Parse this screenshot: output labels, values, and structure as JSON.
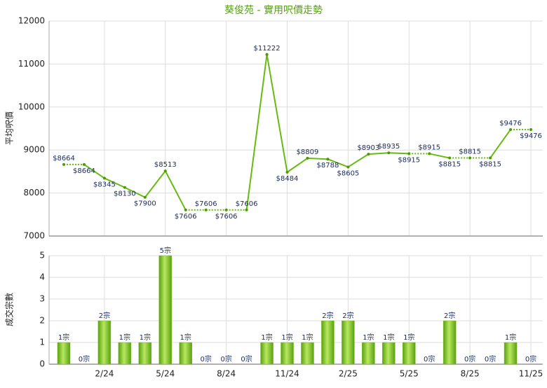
{
  "chart_data": [
    {
      "type": "line",
      "title": "葵俊苑 - 實用呎價走勢",
      "y_label": "平均呎價",
      "categories": [
        null,
        null,
        "2/24",
        null,
        null,
        "5/24",
        null,
        null,
        "8/24",
        null,
        null,
        "11/24",
        null,
        null,
        "2/25",
        null,
        null,
        "5/25",
        null,
        null,
        "8/25",
        null,
        null,
        "11/25"
      ],
      "series": [
        {
          "name": "平均呎價",
          "color": "#66bb11",
          "values": [
            8664,
            8664,
            8345,
            8130,
            7900,
            8513,
            7606,
            7606,
            7606,
            7606,
            11222,
            8484,
            8809,
            8788,
            8605,
            8903,
            8935,
            8915,
            8915,
            8815,
            8815,
            8815,
            9476,
            9476
          ],
          "value_labels": [
            "$8664",
            "$8664",
            "$8345",
            "$8130",
            "$7900",
            "$8513",
            "$7606",
            "$7606",
            "$7606",
            "$7606",
            "$11222",
            "$8484",
            "$8809",
            "$8788",
            "$8605",
            "$8903",
            "$8935",
            "$8915",
            "$8915",
            "$8815",
            "$8815",
            "$8815",
            "$9476",
            "$9476"
          ]
        }
      ],
      "ylim": [
        7000,
        12000
      ],
      "yticks": [
        7000,
        8000,
        9000,
        10000,
        11000,
        12000
      ],
      "grid": true
    },
    {
      "type": "bar",
      "y_label": "成交宗數",
      "categories": [
        null,
        null,
        "2/24",
        null,
        null,
        "5/24",
        null,
        null,
        "8/24",
        null,
        null,
        "11/24",
        null,
        null,
        "2/25",
        null,
        null,
        "5/25",
        null,
        null,
        "8/25",
        null,
        null,
        "11/25"
      ],
      "series": [
        {
          "name": "成交宗數",
          "color": "#77c022",
          "values": [
            1,
            0,
            2,
            1,
            1,
            5,
            1,
            0,
            0,
            0,
            1,
            1,
            1,
            2,
            2,
            1,
            1,
            1,
            0,
            2,
            0,
            0,
            1,
            0
          ],
          "value_labels": [
            "1宗",
            "0宗",
            "2宗",
            "1宗",
            "1宗",
            "5宗",
            "1宗",
            "0宗",
            "0宗",
            "0宗",
            "1宗",
            "1宗",
            "1宗",
            "2宗",
            "2宗",
            "1宗",
            "1宗",
            "1宗",
            "0宗",
            "2宗",
            "0宗",
            "0宗",
            "1宗",
            "0宗"
          ]
        }
      ],
      "ylim": [
        0,
        5
      ],
      "yticks": [
        0,
        1,
        2,
        3,
        4,
        5
      ],
      "grid": true
    }
  ]
}
